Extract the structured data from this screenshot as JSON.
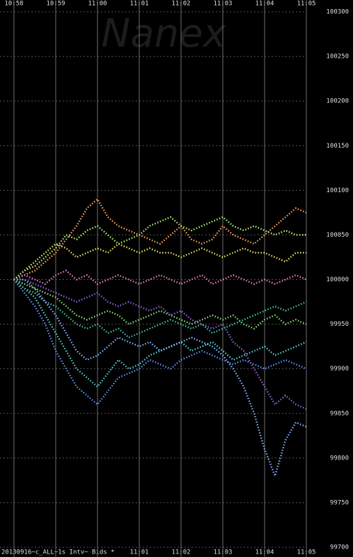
{
  "chart_data": {
    "type": "line",
    "watermark": "Nanex",
    "footer": "20130916~c_ALL~1s Intv~ Bids *",
    "x": [
      "10:58",
      null,
      null,
      null,
      "10:59",
      null,
      null,
      null,
      "11:00",
      null,
      null,
      null,
      "11:01",
      null,
      null,
      null,
      "11:02",
      null,
      null,
      null,
      "11:03",
      null,
      null,
      null,
      "11:04",
      null,
      null,
      null,
      "11:05"
    ],
    "ylim": [
      99700,
      100300
    ],
    "yticks": [
      99700,
      99750,
      99800,
      99850,
      99900,
      99950,
      100000,
      100050,
      100100,
      100150,
      100200,
      100250,
      100300
    ],
    "grid": true,
    "series": [
      {
        "color": "#f5a060",
        "values": [
          100000,
          100005,
          100010,
          100020,
          100030,
          100045,
          100060,
          100080,
          100090,
          100070,
          100060,
          100055,
          100050,
          100045,
          100040,
          100050,
          100060,
          100045,
          100040,
          100045,
          100060,
          100050,
          100045,
          100040,
          100050,
          100060,
          100070,
          100080,
          100075
        ]
      },
      {
        "color": "#e8e060",
        "values": [
          100000,
          100010,
          100020,
          100030,
          100040,
          100035,
          100025,
          100030,
          100035,
          100030,
          100040,
          100035,
          100030,
          100035,
          100030,
          100030,
          100025,
          100030,
          100035,
          100030,
          100025,
          100030,
          100035,
          100030,
          100030,
          100025,
          100020,
          100030,
          100030
        ]
      },
      {
        "color": "#80e070",
        "values": [
          100000,
          99995,
          99990,
          99985,
          99980,
          99970,
          99960,
          99955,
          99960,
          99965,
          99960,
          99950,
          99955,
          99960,
          99965,
          99960,
          99955,
          99950,
          99955,
          99960,
          99955,
          99960,
          99950,
          99945,
          99955,
          99960,
          99950,
          99955,
          99950
        ]
      },
      {
        "color": "#50d0d0",
        "values": [
          100000,
          99990,
          99980,
          99960,
          99940,
          99920,
          99900,
          99890,
          99880,
          99895,
          99910,
          99900,
          99905,
          99915,
          99920,
          99925,
          99930,
          99920,
          99925,
          99930,
          99920,
          99910,
          99915,
          99920,
          99925,
          99915,
          99920,
          99925,
          99930
        ]
      },
      {
        "color": "#6090f0",
        "values": [
          100000,
          99985,
          99970,
          99950,
          99920,
          99900,
          99880,
          99870,
          99860,
          99875,
          99890,
          99895,
          99900,
          99910,
          99905,
          99900,
          99910,
          99915,
          99920,
          99915,
          99910,
          99905,
          99910,
          99905,
          99900,
          99905,
          99910,
          99905,
          99900
        ]
      },
      {
        "color": "#9060e0",
        "values": [
          100000,
          100000,
          99995,
          99990,
          99985,
          99980,
          99975,
          99980,
          99985,
          99975,
          99970,
          99975,
          99970,
          99965,
          99970,
          99960,
          99965,
          99955,
          99950,
          99945,
          99950,
          99930,
          99920,
          99900,
          99880,
          99860,
          99870,
          99860,
          99855
        ]
      },
      {
        "color": "#e080c0",
        "values": [
          100000,
          100005,
          100000,
          99995,
          100005,
          100010,
          100000,
          100005,
          99995,
          100000,
          100005,
          100000,
          99995,
          100000,
          100005,
          100000,
          99995,
          100000,
          100005,
          99995,
          100000,
          100005,
          100000,
          99995,
          100000,
          99995,
          100000,
          100005,
          100000
        ]
      },
      {
        "color": "#b0f070",
        "values": [
          100000,
          100010,
          100015,
          100025,
          100035,
          100050,
          100045,
          100055,
          100060,
          100050,
          100040,
          100045,
          100050,
          100060,
          100065,
          100070,
          100060,
          100055,
          100060,
          100065,
          100070,
          100060,
          100055,
          100060,
          100055,
          100050,
          100055,
          100050,
          100050
        ]
      },
      {
        "color": "#40c0a0",
        "values": [
          100000,
          99990,
          99985,
          99975,
          99970,
          99960,
          99950,
          99945,
          99950,
          99940,
          99945,
          99935,
          99940,
          99945,
          99950,
          99955,
          99950,
          99945,
          99950,
          99940,
          99945,
          99950,
          99955,
          99960,
          99965,
          99970,
          99965,
          99970,
          99975
        ]
      },
      {
        "color": "#80b0ff",
        "values": [
          100000,
          100000,
          99990,
          99975,
          99960,
          99940,
          99920,
          99910,
          99915,
          99925,
          99935,
          99930,
          99925,
          99930,
          99920,
          99925,
          99930,
          99935,
          99930,
          99925,
          99915,
          99900,
          99880,
          99850,
          99810,
          99780,
          99820,
          99840,
          99835
        ]
      }
    ]
  }
}
